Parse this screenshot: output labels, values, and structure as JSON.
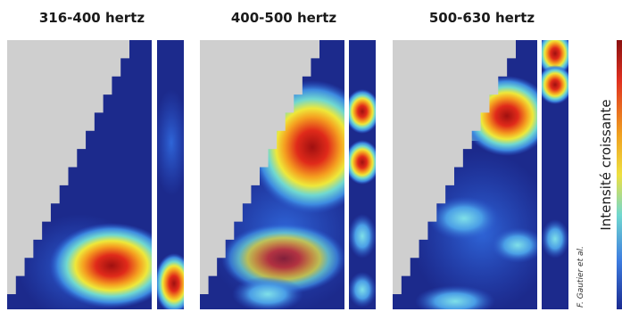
{
  "panels": [
    {
      "title": "316-400 hertz"
    },
    {
      "title": "400-500 hertz"
    },
    {
      "title": "500-630 hertz"
    }
  ],
  "colorbar": {
    "label": "Intensité croissante"
  },
  "credit": "F. Gautier et al."
}
